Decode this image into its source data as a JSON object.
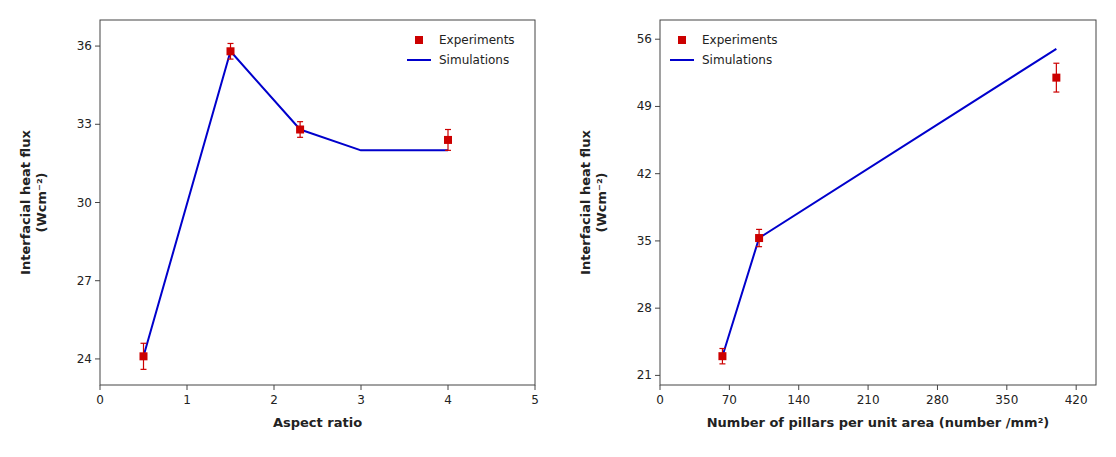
{
  "chart_data": [
    {
      "type": "line",
      "x_label": "Aspect ratio",
      "y_label": "Interfacial heat flux\n(Wcm⁻²)",
      "xlim": [
        0,
        5
      ],
      "xticks": [
        0,
        1,
        2,
        3,
        4,
        5
      ],
      "ylim": [
        23,
        37
      ],
      "yticks": [
        24,
        27,
        30,
        33,
        36
      ],
      "grid": false,
      "legend": "upper right",
      "series": [
        {
          "name": "Experiments",
          "type": "scatter",
          "marker": "square",
          "color": "#cc0000",
          "x": [
            0.5,
            1.5,
            2.3,
            4.0
          ],
          "values": [
            24.1,
            35.8,
            32.8,
            32.4
          ],
          "errors": [
            0.5,
            0.3,
            0.3,
            0.4
          ]
        },
        {
          "name": "Simulations",
          "type": "line",
          "color": "#0000cc",
          "x": [
            0.5,
            1.5,
            2.3,
            3.0,
            4.0
          ],
          "values": [
            24.1,
            35.8,
            32.8,
            32.0,
            32.0
          ]
        }
      ]
    },
    {
      "type": "line",
      "x_label": "Number of pillars per unit area (number /mm²)",
      "y_label": "Interfacial heat flux\n(Wcm⁻²)",
      "xlim": [
        0,
        440
      ],
      "xticks": [
        0,
        70,
        140,
        210,
        280,
        350,
        420
      ],
      "ylim": [
        20,
        58
      ],
      "yticks": [
        21,
        28,
        35,
        42,
        49,
        56
      ],
      "grid": false,
      "legend": "upper left",
      "series": [
        {
          "name": "Experiments",
          "type": "scatter",
          "marker": "square",
          "color": "#cc0000",
          "x": [
            63,
            100,
            400
          ],
          "values": [
            23.0,
            35.3,
            52.0
          ],
          "errors": [
            0.8,
            0.9,
            1.5
          ]
        },
        {
          "name": "Simulations",
          "type": "line",
          "color": "#0000cc",
          "x": [
            63,
            100,
            400
          ],
          "values": [
            23.0,
            35.3,
            55.0
          ]
        }
      ]
    }
  ]
}
